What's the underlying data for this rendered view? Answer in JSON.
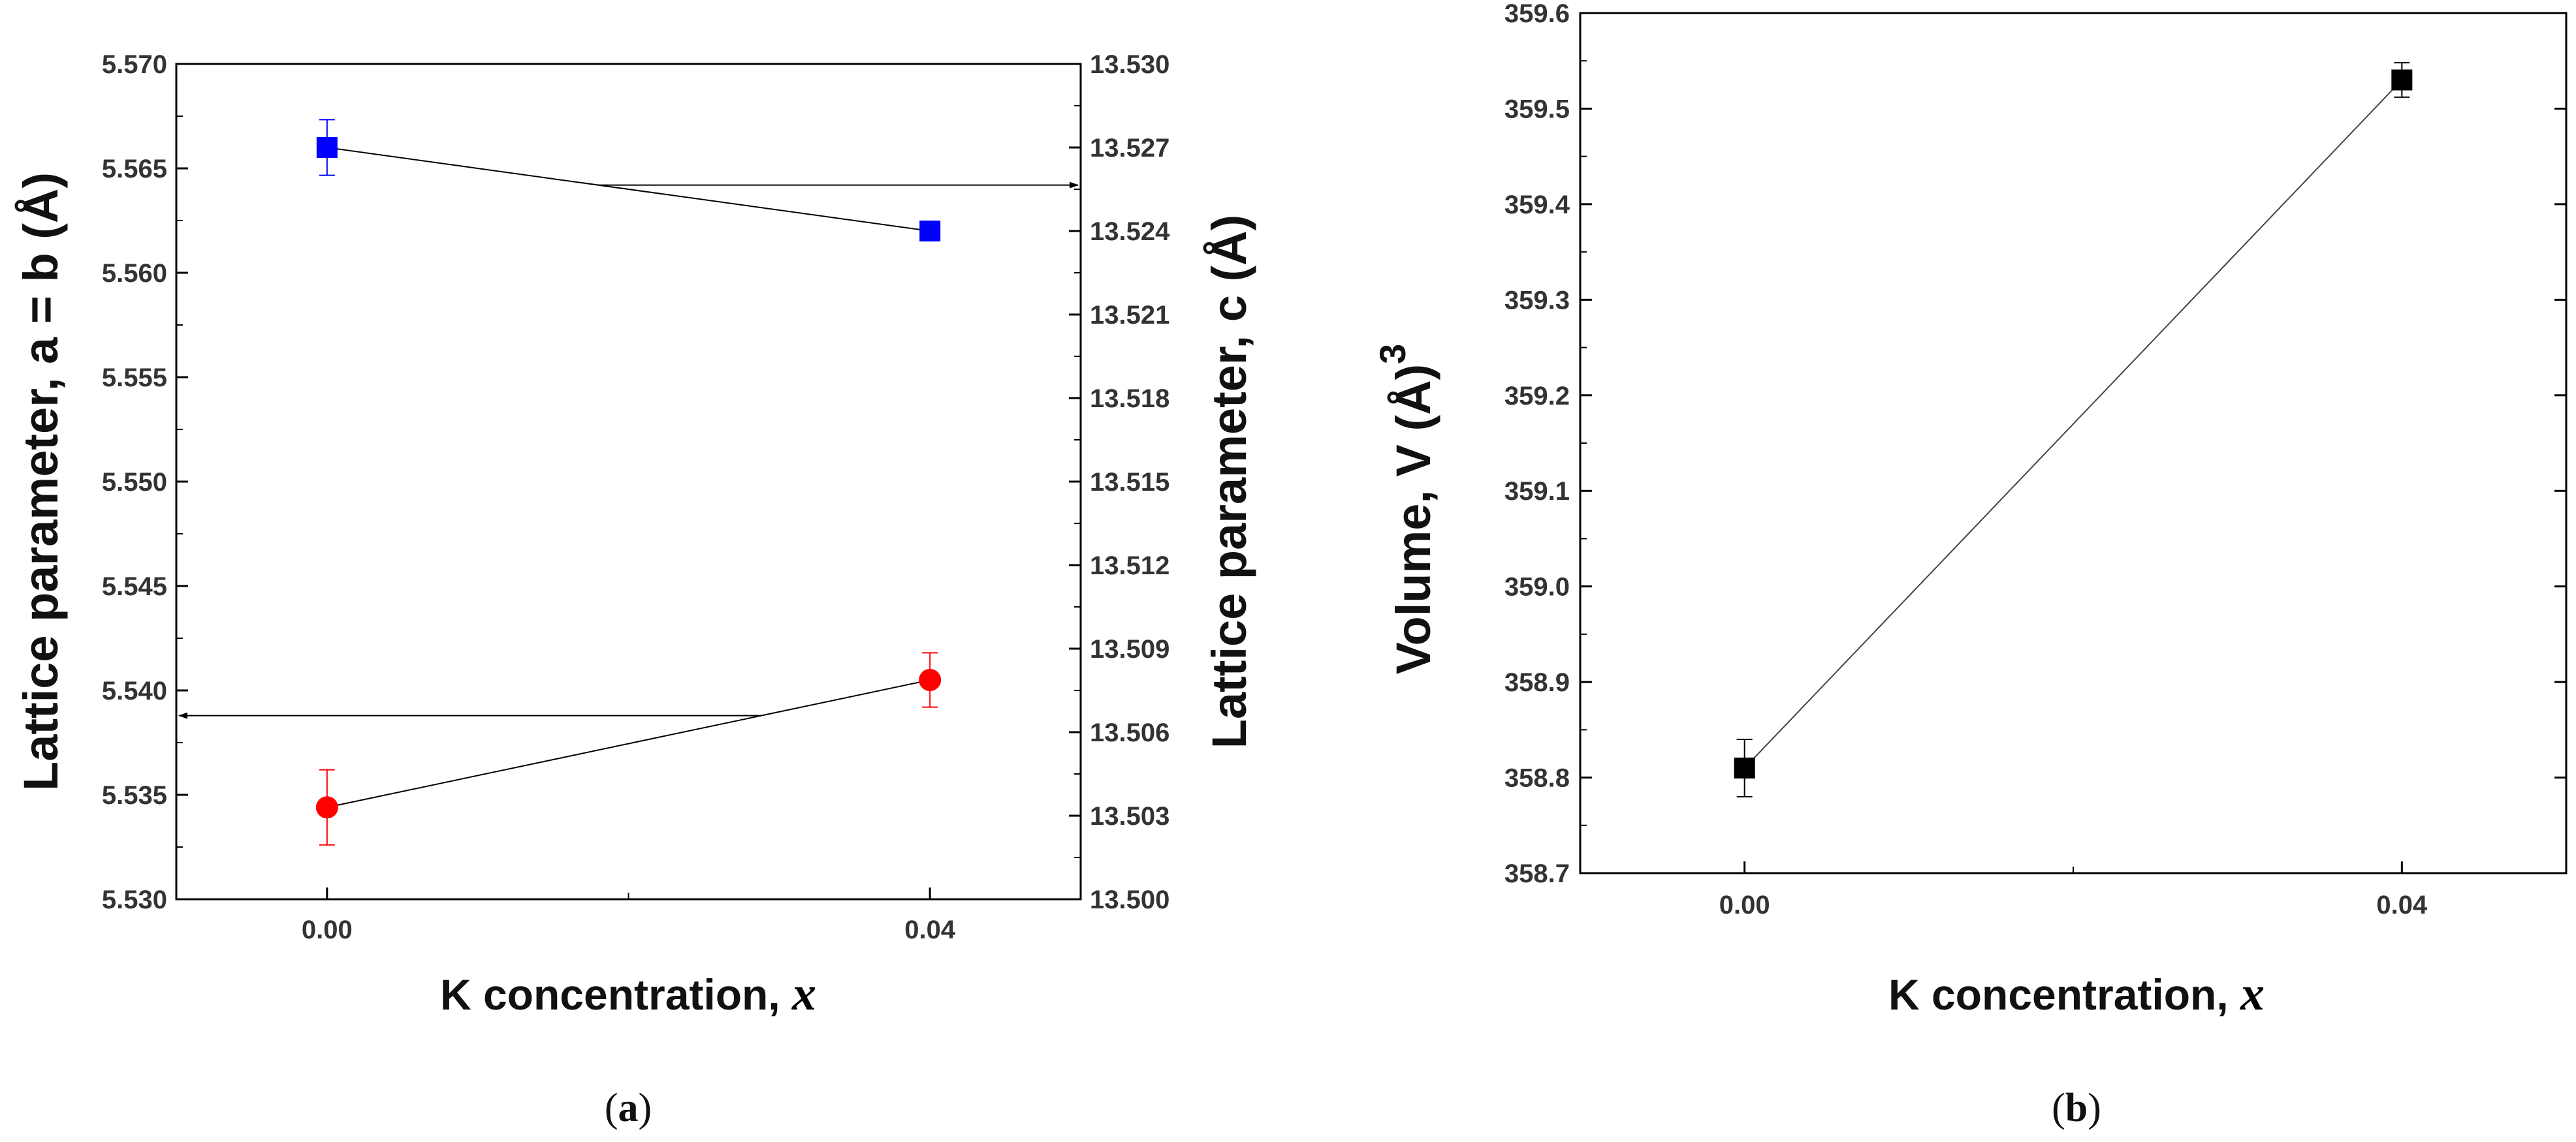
{
  "chart_data": [
    {
      "panel": "a",
      "type": "scatter",
      "caption": {
        "open": "(",
        "letter": "a",
        "close": ")"
      },
      "xlabel": {
        "text": "K concentration, ",
        "var": "x"
      },
      "xlim": [
        -0.01,
        0.05
      ],
      "xticks": [
        0.0,
        0.04
      ],
      "xtick_labels": [
        "0.00",
        "0.04"
      ],
      "ylabel_left": "Lattice parameter, a = b (Å)",
      "ylim_left": [
        5.53,
        5.57
      ],
      "yticks_left": [
        "5.530",
        "5.535",
        "5.540",
        "5.545",
        "5.550",
        "5.555",
        "5.560",
        "5.565",
        "5.570"
      ],
      "ylabel_right": "Lattice parameter, c (Å)",
      "ylim_right": [
        13.5,
        13.53
      ],
      "yticks_right": [
        "13.500",
        "13.503",
        "13.506",
        "13.509",
        "13.512",
        "13.515",
        "13.518",
        "13.521",
        "13.524",
        "13.527",
        "13.530"
      ],
      "series": [
        {
          "name": "a = b",
          "axis": "left",
          "marker": "circle",
          "color": "#ff0000",
          "x": [
            0.0,
            0.04
          ],
          "y": [
            5.5344,
            5.5405
          ],
          "err": [
            0.0018,
            0.0013
          ],
          "arrow": "left"
        },
        {
          "name": "c",
          "axis": "right",
          "marker": "square",
          "color": "#0000ff",
          "x": [
            0.0,
            0.04
          ],
          "y": [
            13.527,
            13.524
          ],
          "err": [
            0.001,
            0.0003
          ],
          "arrow": "right"
        }
      ]
    },
    {
      "panel": "b",
      "type": "scatter",
      "caption": {
        "open": "(",
        "letter": "b",
        "close": ")"
      },
      "xlabel": {
        "text": "K concentration, ",
        "var": "x"
      },
      "xlim": [
        -0.01,
        0.05
      ],
      "xticks": [
        0.0,
        0.04
      ],
      "xtick_labels": [
        "0.00",
        "0.04"
      ],
      "ylabel": "Volume, V (Å)",
      "ylabel_superscript": "3",
      "ylim": [
        358.7,
        359.6
      ],
      "yticks": [
        "358.7",
        "358.8",
        "358.9",
        "359.0",
        "359.1",
        "359.2",
        "359.3",
        "359.4",
        "359.5",
        "359.6"
      ],
      "series": [
        {
          "name": "V",
          "marker": "square",
          "color": "#000000",
          "x": [
            0.0,
            0.04
          ],
          "y": [
            358.81,
            359.53
          ],
          "err": [
            0.03,
            0.018
          ]
        }
      ]
    }
  ]
}
